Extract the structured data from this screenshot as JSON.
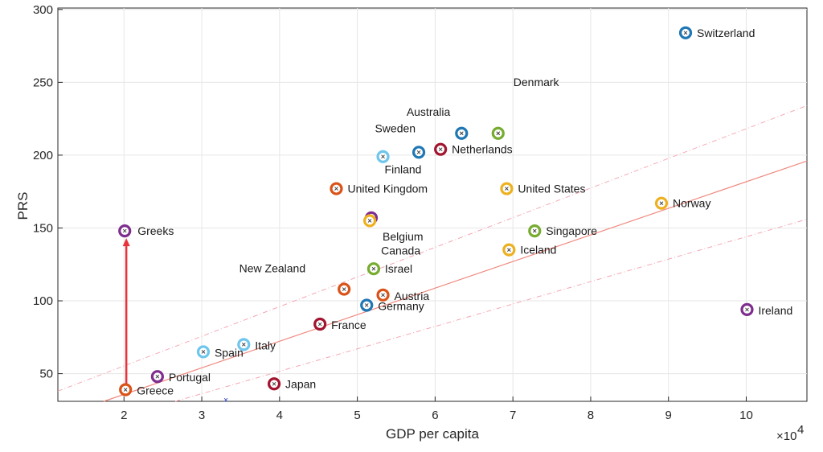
{
  "chart_data": {
    "type": "scatter",
    "xlabel": "GDP per capita",
    "ylabel": "PRS",
    "x_multiplier": "×10",
    "x_multiplier_exp": "4",
    "xlim": [
      1.15,
      10.78
    ],
    "ylim": [
      31,
      301
    ],
    "x_ticks": [
      "2",
      "3",
      "4",
      "5",
      "6",
      "7",
      "8",
      "9",
      "10"
    ],
    "y_ticks": [
      "50",
      "100",
      "150",
      "200",
      "250",
      "300"
    ],
    "colors": {
      "dark_blue": "#1f77b4",
      "light_blue": "#6fc6ec",
      "purple": "#7e2f8e",
      "orange": "#d95319",
      "red": "#a2142f",
      "green": "#77ac30",
      "yellow": "#edb120",
      "fit_line": "#f08a80",
      "arrow": "#e8333a"
    },
    "points": [
      {
        "name": "Switzerland",
        "x": 9.22,
        "y": 284,
        "color": "#1f77b4"
      },
      {
        "name": "Australia",
        "x": 6.34,
        "y": 215,
        "color": "#1f77b4"
      },
      {
        "name": "Denmark",
        "x": 6.81,
        "y": 215,
        "color": "#77ac30"
      },
      {
        "name": "Sweden",
        "x": 5.79,
        "y": 202,
        "color": "#1f77b4"
      },
      {
        "name": "Netherlands",
        "x": 6.07,
        "y": 204,
        "color": "#a2142f"
      },
      {
        "name": "Finland",
        "x": 5.33,
        "y": 199,
        "color": "#6fc6ec"
      },
      {
        "name": "United Kingdom",
        "x": 4.73,
        "y": 177,
        "color": "#d95319"
      },
      {
        "name": "United States",
        "x": 6.92,
        "y": 177,
        "color": "#edb120"
      },
      {
        "name": "Norway",
        "x": 8.91,
        "y": 167,
        "color": "#edb120"
      },
      {
        "name": "Belgium",
        "x": 5.18,
        "y": 157,
        "color": "#7e2f8e"
      },
      {
        "name": "Canada",
        "x": 5.16,
        "y": 155,
        "color": "#edb120"
      },
      {
        "name": "Greeks",
        "x": 2.01,
        "y": 148,
        "color": "#7e2f8e"
      },
      {
        "name": "Singapore",
        "x": 7.28,
        "y": 148,
        "color": "#77ac30"
      },
      {
        "name": "Iceland",
        "x": 6.95,
        "y": 135,
        "color": "#edb120"
      },
      {
        "name": "Israel",
        "x": 5.21,
        "y": 122,
        "color": "#77ac30"
      },
      {
        "name": "New Zealand",
        "x": 4.83,
        "y": 108,
        "color": "#d95319"
      },
      {
        "name": "Austria",
        "x": 5.33,
        "y": 104,
        "color": "#d95319"
      },
      {
        "name": "Germany",
        "x": 5.12,
        "y": 97,
        "color": "#1f77b4"
      },
      {
        "name": "Ireland",
        "x": 10.01,
        "y": 94,
        "color": "#7e2f8e"
      },
      {
        "name": "France",
        "x": 4.52,
        "y": 84,
        "color": "#a2142f"
      },
      {
        "name": "Italy",
        "x": 3.54,
        "y": 70,
        "color": "#6fc6ec"
      },
      {
        "name": "Spain",
        "x": 3.02,
        "y": 65,
        "color": "#6fc6ec"
      },
      {
        "name": "Portugal",
        "x": 2.43,
        "y": 48,
        "color": "#7e2f8e"
      },
      {
        "name": "Japan",
        "x": 3.93,
        "y": 43,
        "color": "#a2142f"
      },
      {
        "name": "Greece",
        "x": 2.02,
        "y": 39,
        "color": "#d95319"
      }
    ],
    "fit_line": {
      "x": [
        1.74,
        10.78
      ],
      "y": [
        31,
        196
      ]
    },
    "upper_band": {
      "x": [
        1.15,
        10.78
      ],
      "y": [
        38,
        234
      ]
    },
    "lower_band": {
      "x": [
        2.66,
        10.78
      ],
      "y": [
        31,
        156
      ]
    },
    "arrow": {
      "x": 2.03,
      "y_from": 41,
      "y_to": 148
    },
    "stray_marker": {
      "x": 3.31,
      "y": 32
    }
  }
}
